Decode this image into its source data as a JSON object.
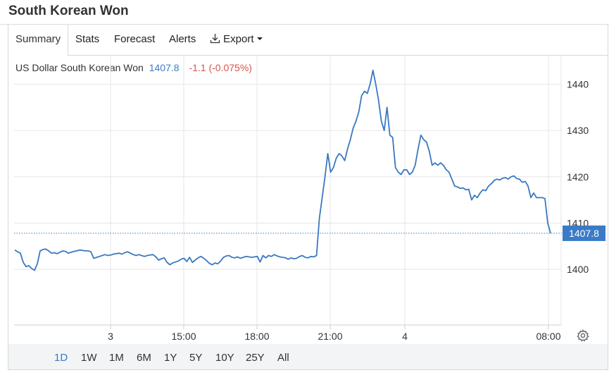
{
  "page": {
    "title": "South Korean Won"
  },
  "tabs": [
    {
      "label": "Summary",
      "active": true
    },
    {
      "label": "Stats"
    },
    {
      "label": "Forecast"
    },
    {
      "label": "Alerts"
    },
    {
      "label": "Export",
      "icon": "download-icon",
      "has_dropdown": true
    }
  ],
  "quote": {
    "name": "US Dollar South Korean Won",
    "price": "1407.8",
    "change": "-1.1 (-0.075%)"
  },
  "colors": {
    "line": "#3a78c2",
    "accent": "#3a7bc8",
    "negative": "#d9534f",
    "grid": "#e6e6e6"
  },
  "chart_data": {
    "type": "line",
    "y_axis": {
      "ticks": [
        "1440",
        "1430",
        "1420",
        "1410",
        "1400"
      ],
      "min": 1388,
      "max": 1446,
      "position": "right"
    },
    "x_axis": {
      "ticks": [
        "3",
        "15:00",
        "18:00",
        "21:00",
        "4",
        "08:00"
      ]
    },
    "last_value_label": "1407.8",
    "last_value": 1407.8,
    "grid": true,
    "series": [
      {
        "values": [
          1404.2,
          1403.8,
          1403.5,
          1401.5,
          1400.6,
          1400.8,
          1400.2,
          1399.8,
          1401.2,
          1404.0,
          1404.3,
          1404.4,
          1404.0,
          1403.5,
          1403.6,
          1403.4,
          1403.7,
          1404.0,
          1403.9,
          1403.5,
          1403.7,
          1403.9,
          1404.0,
          1404.2,
          1404.1,
          1404.0,
          1404.0,
          1403.8,
          1402.4,
          1402.6,
          1402.8,
          1403.0,
          1403.2,
          1403.0,
          1403.1,
          1403.3,
          1403.4,
          1403.5,
          1403.3,
          1403.6,
          1403.8,
          1403.5,
          1403.2,
          1403.0,
          1403.2,
          1403.0,
          1402.8,
          1403.0,
          1403.1,
          1403.2,
          1402.7,
          1402.0,
          1402.3,
          1402.5,
          1401.5,
          1401.0,
          1401.4,
          1401.6,
          1401.8,
          1402.2,
          1402.4,
          1401.7,
          1402.6,
          1401.5,
          1402.0,
          1402.5,
          1402.8,
          1402.4,
          1401.9,
          1401.3,
          1401.0,
          1401.4,
          1401.2,
          1401.8,
          1402.6,
          1402.9,
          1403.0,
          1402.6,
          1402.5,
          1402.7,
          1402.4,
          1402.6,
          1402.8,
          1402.7,
          1402.6,
          1402.7,
          1402.8,
          1401.6,
          1403.0,
          1402.5,
          1403.0,
          1402.8,
          1403.2,
          1402.9,
          1402.7,
          1402.6,
          1402.5,
          1402.2,
          1402.5,
          1402.3,
          1402.4,
          1402.8,
          1403.0,
          1402.6,
          1402.5,
          1402.8,
          1402.7,
          1403.0,
          1411.0,
          1415.5,
          1420.0,
          1425.0,
          1421.0,
          1422.0,
          1424.0,
          1425.0,
          1424.5,
          1423.5,
          1426.0,
          1428.0,
          1430.5,
          1432.0,
          1434.0,
          1437.5,
          1438.5,
          1438.0,
          1440.0,
          1443.0,
          1440.0,
          1436.5,
          1432.0,
          1430.0,
          1435.0,
          1429.0,
          1428.5,
          1422.0,
          1421.0,
          1420.5,
          1421.5,
          1421.5,
          1420.5,
          1421.0,
          1422.5,
          1426.0,
          1429.0,
          1428.0,
          1427.5,
          1425.5,
          1422.5,
          1423.0,
          1422.5,
          1423.0,
          1422.5,
          1421.5,
          1421.0,
          1419.5,
          1418.0,
          1417.8,
          1417.5,
          1417.6,
          1417.2,
          1417.3,
          1415.0,
          1416.0,
          1415.5,
          1416.5,
          1417.2,
          1417.0,
          1418.0,
          1418.5,
          1419.2,
          1419.5,
          1419.3,
          1419.7,
          1419.8,
          1419.5,
          1420.0,
          1420.2,
          1419.6,
          1419.5,
          1418.8,
          1419.0,
          1418.0,
          1415.5,
          1416.5,
          1415.5,
          1415.5,
          1415.5,
          1415.3,
          1410.0,
          1407.8
        ]
      }
    ]
  },
  "ranges": [
    {
      "label": "1D",
      "active": true
    },
    {
      "label": "1W"
    },
    {
      "label": "1M"
    },
    {
      "label": "6M"
    },
    {
      "label": "1Y"
    },
    {
      "label": "5Y"
    },
    {
      "label": "10Y"
    },
    {
      "label": "25Y"
    },
    {
      "label": "All"
    }
  ],
  "settings": {
    "icon": "gear-icon"
  }
}
